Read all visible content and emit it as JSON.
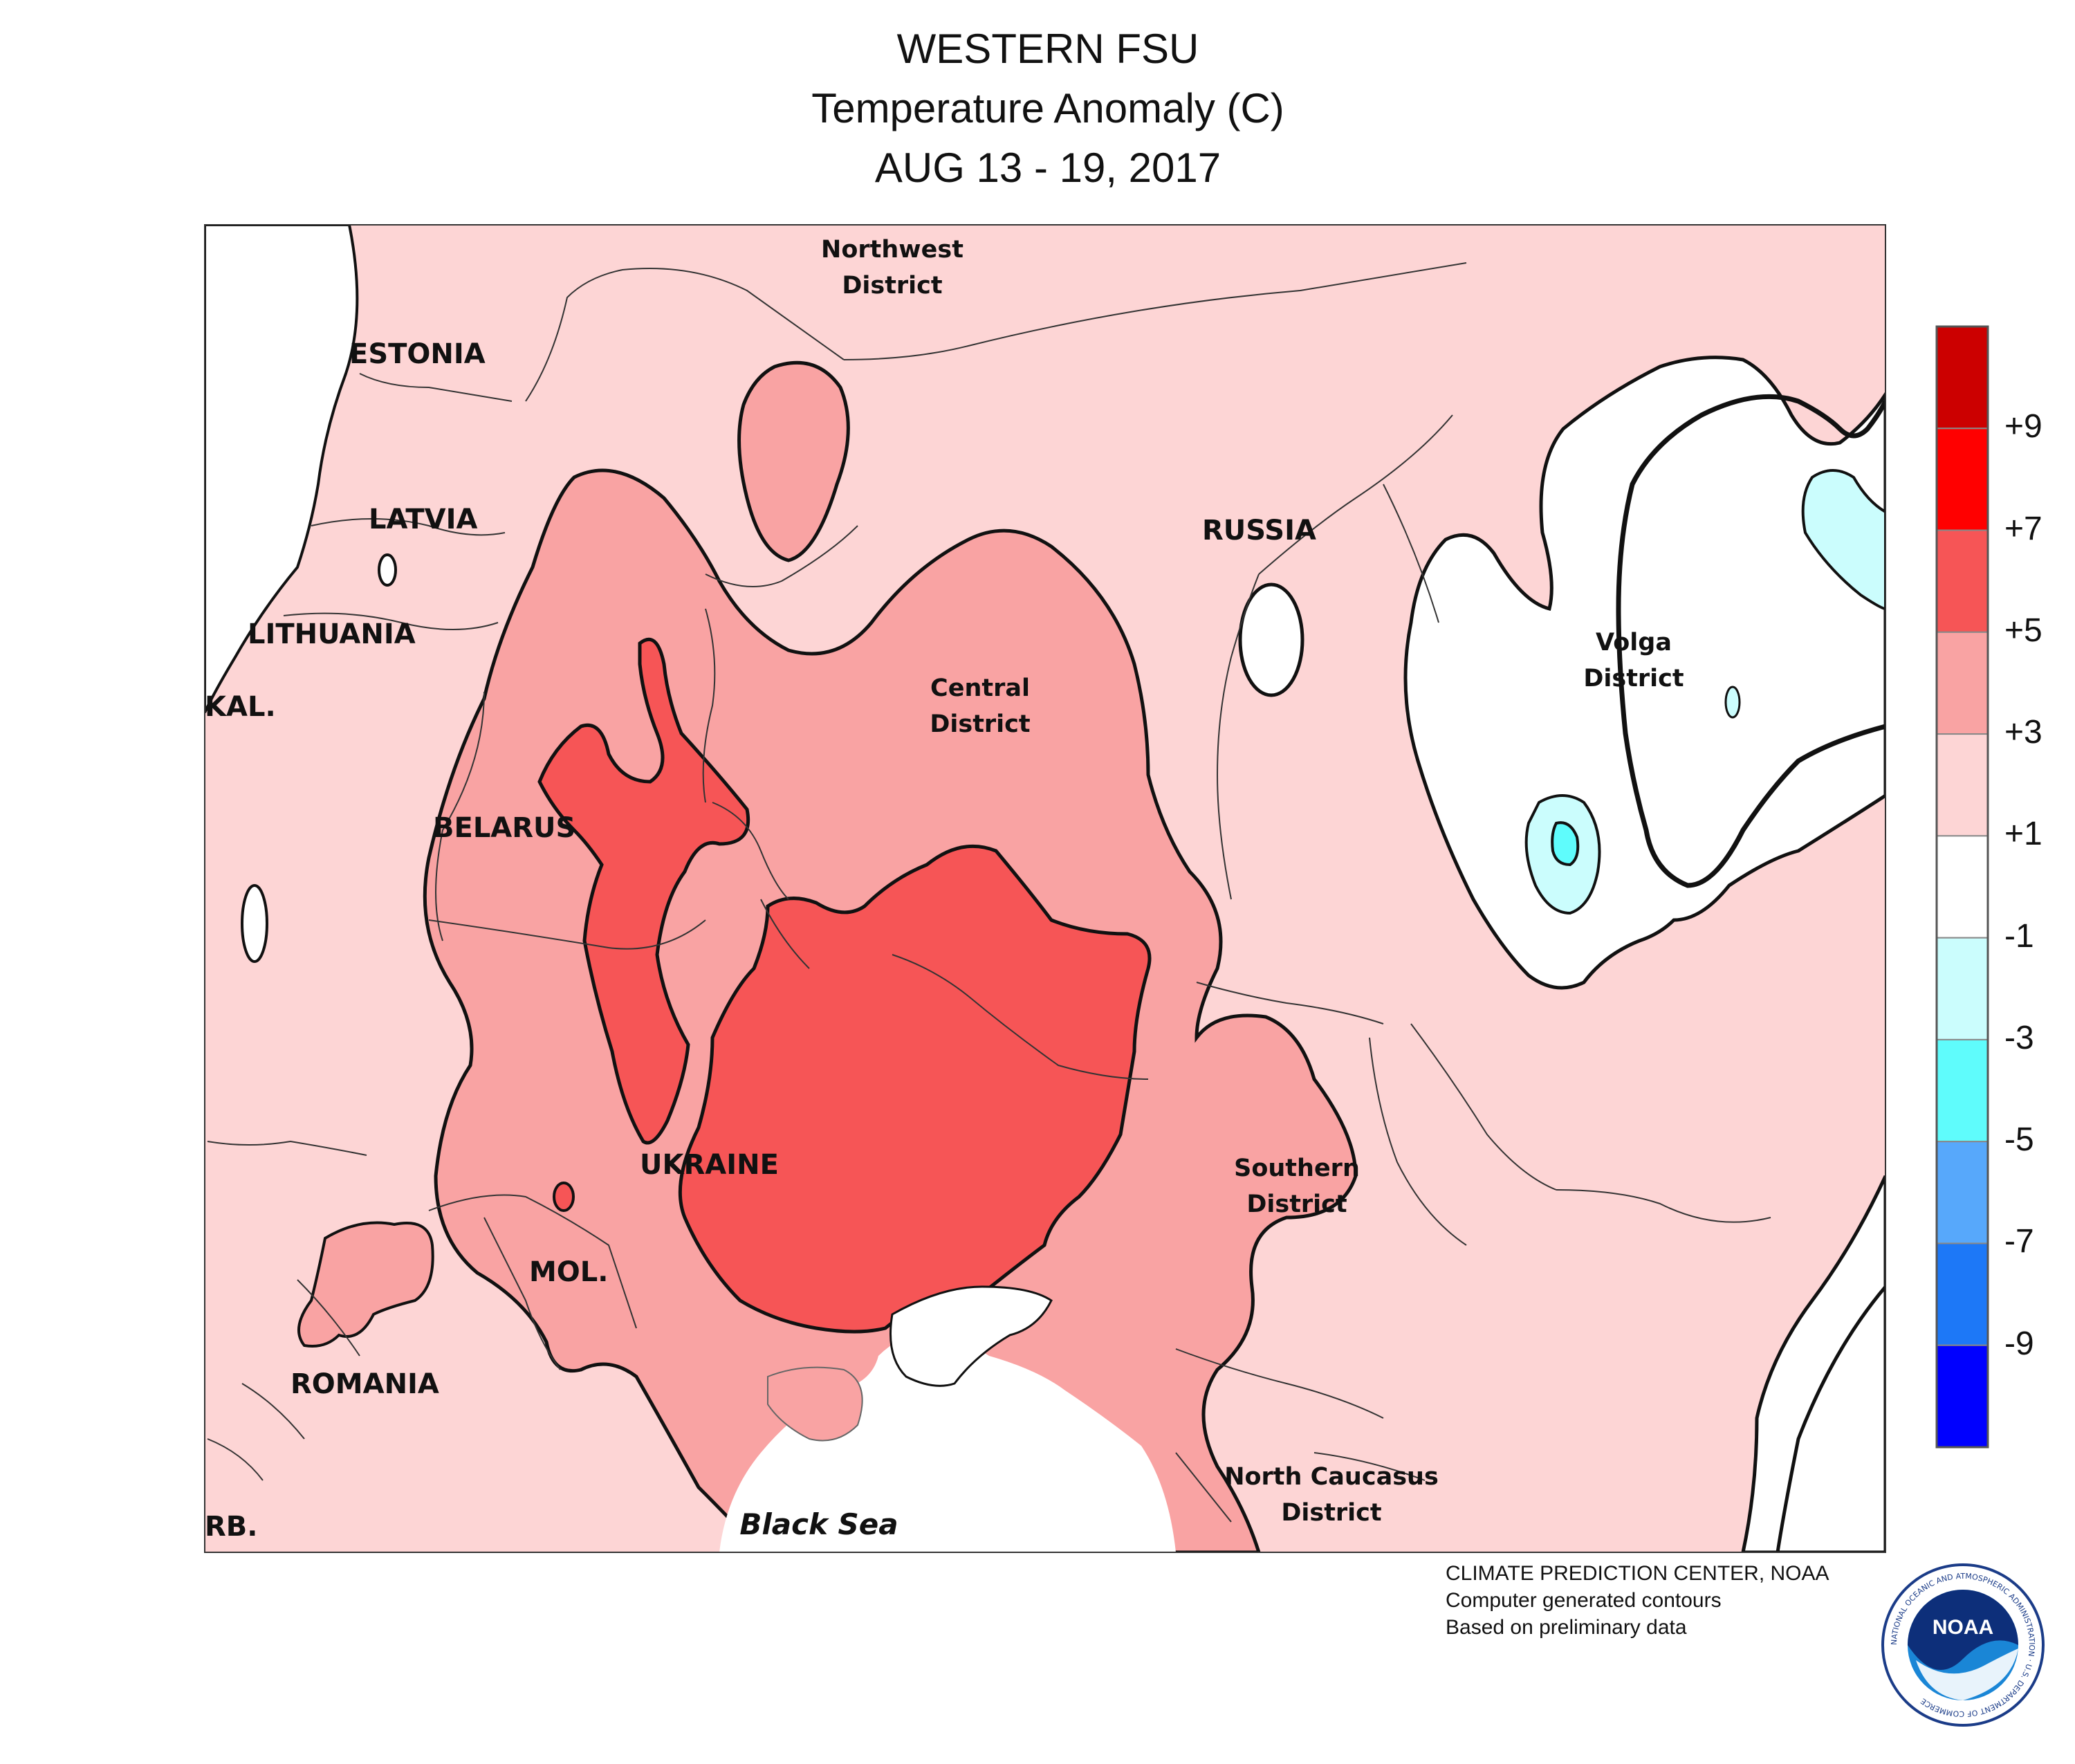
{
  "header": {
    "line1": "WESTERN FSU",
    "line2": "Temperature Anomaly (C)",
    "line3": "AUG 13 - 19, 2017"
  },
  "map": {
    "labels": {
      "estonia": "ESTONIA",
      "latvia": "LATVIA",
      "lithuania": "LITHUANIA",
      "kaliningrad": "KAL.",
      "belarus": "BELARUS",
      "ukraine": "UKRAINE",
      "moldova": "MOL.",
      "romania": "ROMANIA",
      "serbia": "RB.",
      "russia": "RUSSIA",
      "northwest_district_1": "Northwest",
      "northwest_district_2": "District",
      "central_district_1": "Central",
      "central_district_2": "District",
      "volga_district_1": "Volga",
      "volga_district_2": "District",
      "southern_district_1": "Southern",
      "southern_district_2": "District",
      "north_caucasus_1": "North Caucasus",
      "north_caucasus_2": "District",
      "black_sea": "Black Sea"
    },
    "colors": {
      "plus1_to_3": "#fdd5d5",
      "plus3_to_5": "#f9a3a3",
      "plus5_to_7": "#f65556",
      "minus1_to_3": "#cbfdfd",
      "minus3_to_5": "#5ffcfc",
      "water": "#ffffff",
      "black_sea_label": "#2e5fc4"
    }
  },
  "legend": {
    "units": "°C",
    "labels": [
      "+9",
      "+7",
      "+5",
      "+3",
      "+1",
      "-1",
      "-3",
      "-5",
      "-7",
      "-9"
    ],
    "colors": [
      "#cc0000",
      "#ff0000",
      "#f65556",
      "#f9a3a3",
      "#fdd5d5",
      "#ffffff",
      "#cbfdfd",
      "#5ffcfc",
      "#57a8fb",
      "#1d78f7",
      "#0000ff"
    ]
  },
  "credits": {
    "line1": "CLIMATE PREDICTION CENTER, NOAA",
    "line2": "Computer generated contours",
    "line3": "Based on preliminary data"
  },
  "logo": {
    "text": "NOAA",
    "ring_text": "NATIONAL OCEANIC AND ATMOSPHERIC ADMINISTRATION · U.S. DEPARTMENT OF COMMERCE"
  }
}
